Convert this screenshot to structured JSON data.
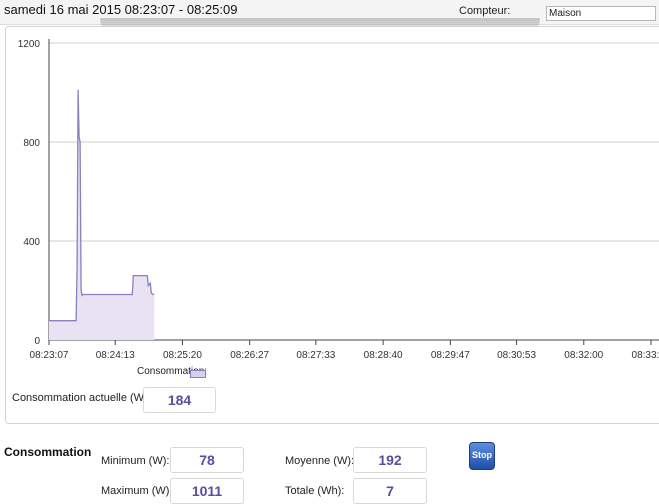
{
  "header": {
    "session": "samedi 16 mai 2015 08:23:07 - 08:25:09",
    "compteur_label": "Compteur:",
    "compteur_value": "Maison"
  },
  "chart_data": {
    "type": "area",
    "xlabel": "",
    "ylabel": "",
    "ylim": [
      0,
      1200
    ],
    "y_ticks": [
      "0",
      "400",
      "800",
      "1200"
    ],
    "x_ticks": [
      "08:23:07",
      "08:24:13",
      "08:25:20",
      "08:26:27",
      "08:27:33",
      "08:28:40",
      "08:29:47",
      "08:30:53",
      "08:32:00",
      "08:33:07"
    ],
    "grid": "horizontal",
    "series": [
      {
        "name": "Consommation:",
        "color": "#8a7fbf",
        "fill": "#e8e2f2",
        "x": [
          "08:23:07",
          "08:23:34",
          "08:23:35",
          "08:23:36",
          "08:23:37",
          "08:23:38",
          "08:23:39",
          "08:23:40",
          "08:23:41",
          "08:24:30",
          "08:24:31",
          "08:24:45",
          "08:24:46",
          "08:24:48",
          "08:24:49",
          "08:24:51",
          "08:24:52"
        ],
        "y": [
          78,
          78,
          300,
          1011,
          820,
          800,
          200,
          180,
          184,
          184,
          260,
          260,
          220,
          230,
          190,
          184,
          184
        ]
      }
    ]
  },
  "legend": {
    "label": "Consommation:"
  },
  "current": {
    "label": "Consommation actuelle (W):",
    "value": "184"
  },
  "stats": {
    "title": "Consommation",
    "min_label": "Minimum (W):",
    "min_value": "78",
    "max_label": "Maximum (W):",
    "max_value": "1011",
    "avg_label": "Moyenne (W):",
    "avg_value": "192",
    "total_label": "Totale (Wh):",
    "total_value": "7"
  },
  "stop_label": "Stop"
}
